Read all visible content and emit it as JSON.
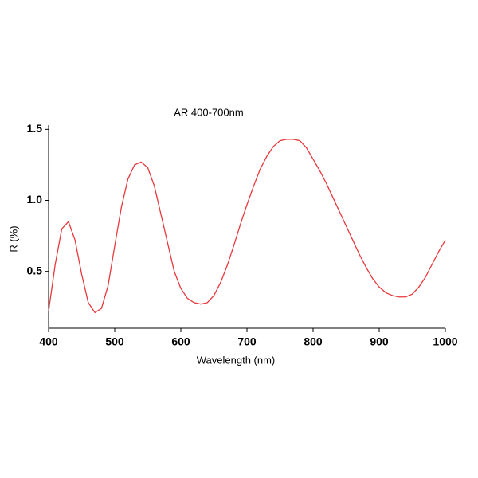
{
  "chart_data": {
    "type": "line",
    "title": "AR 400-700nm",
    "x_label": "Wavelength (nm)",
    "y_label": "R (%)",
    "x": [
      400,
      410,
      420,
      430,
      440,
      450,
      460,
      470,
      480,
      490,
      500,
      510,
      520,
      530,
      540,
      550,
      560,
      570,
      580,
      590,
      600,
      610,
      620,
      630,
      640,
      650,
      660,
      670,
      680,
      690,
      700,
      710,
      720,
      730,
      740,
      750,
      760,
      770,
      780,
      790,
      800,
      810,
      820,
      830,
      840,
      850,
      860,
      870,
      880,
      890,
      900,
      910,
      920,
      930,
      940,
      950,
      960,
      970,
      980,
      990,
      1000
    ],
    "series": [
      {
        "color": "#e8383d",
        "values": [
          0.22,
          0.55,
          0.8,
          0.85,
          0.72,
          0.48,
          0.28,
          0.21,
          0.24,
          0.4,
          0.68,
          0.95,
          1.15,
          1.25,
          1.27,
          1.23,
          1.1,
          0.9,
          0.7,
          0.5,
          0.38,
          0.31,
          0.28,
          0.27,
          0.28,
          0.33,
          0.42,
          0.54,
          0.68,
          0.83,
          0.97,
          1.1,
          1.22,
          1.31,
          1.38,
          1.42,
          1.43,
          1.43,
          1.42,
          1.37,
          1.29,
          1.21,
          1.12,
          1.02,
          0.92,
          0.82,
          0.72,
          0.62,
          0.53,
          0.45,
          0.39,
          0.35,
          0.33,
          0.32,
          0.32,
          0.34,
          0.39,
          0.46,
          0.55,
          0.64,
          0.72
        ]
      }
    ],
    "xlim": [
      400,
      1000
    ],
    "xticks": [
      400,
      500,
      600,
      700,
      800,
      900,
      1000
    ],
    "ylim": [
      0.1,
      1.53
    ],
    "yticks": [
      0.5,
      {
        "value": 1,
        "label": "1.0"
      },
      1.5
    ],
    "grid": false
  }
}
